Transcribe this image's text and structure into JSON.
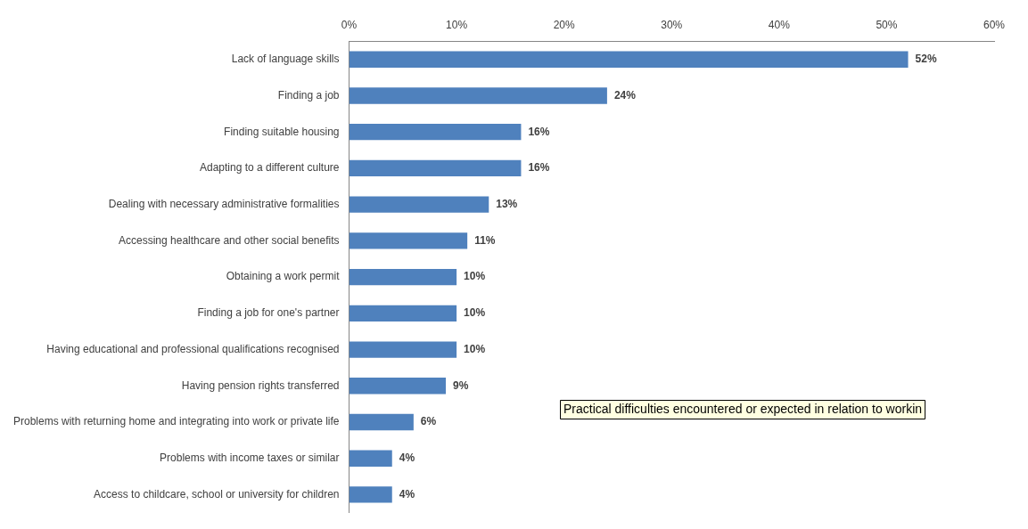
{
  "chart_data": {
    "type": "bar",
    "orientation": "horizontal",
    "categories": [
      "Lack of language skills",
      "Finding a job",
      "Finding suitable housing",
      "Adapting to a different culture",
      "Dealing with necessary administrative formalities",
      "Accessing healthcare and other social benefits",
      "Obtaining a work permit",
      "Finding a job for one's partner",
      "Having educational and professional qualifications recognised",
      "Having pension rights transferred",
      "Problems with returning home and integrating into work or private life",
      "Problems with income taxes or similar",
      "Access to childcare, school or university for children"
    ],
    "values": [
      52,
      24,
      16,
      16,
      13,
      11,
      10,
      10,
      10,
      9,
      6,
      4,
      4
    ],
    "value_labels": [
      "52%",
      "24%",
      "16%",
      "16%",
      "13%",
      "11%",
      "10%",
      "10%",
      "10%",
      "9%",
      "6%",
      "4%",
      "4%"
    ],
    "color": "#4f81bd",
    "xlim": [
      0,
      60
    ],
    "xticks": [
      {
        "value": 0,
        "label": "0%"
      },
      {
        "value": 10,
        "label": "10%"
      },
      {
        "value": 20,
        "label": "20%"
      },
      {
        "value": 30,
        "label": "30%"
      },
      {
        "value": 40,
        "label": "40%"
      },
      {
        "value": 50,
        "label": "50%"
      },
      {
        "value": 60,
        "label": "60%"
      }
    ],
    "grid": false,
    "legend": false,
    "annotations": [
      "Practical difficulties encountered or expected in relation to workin"
    ]
  }
}
